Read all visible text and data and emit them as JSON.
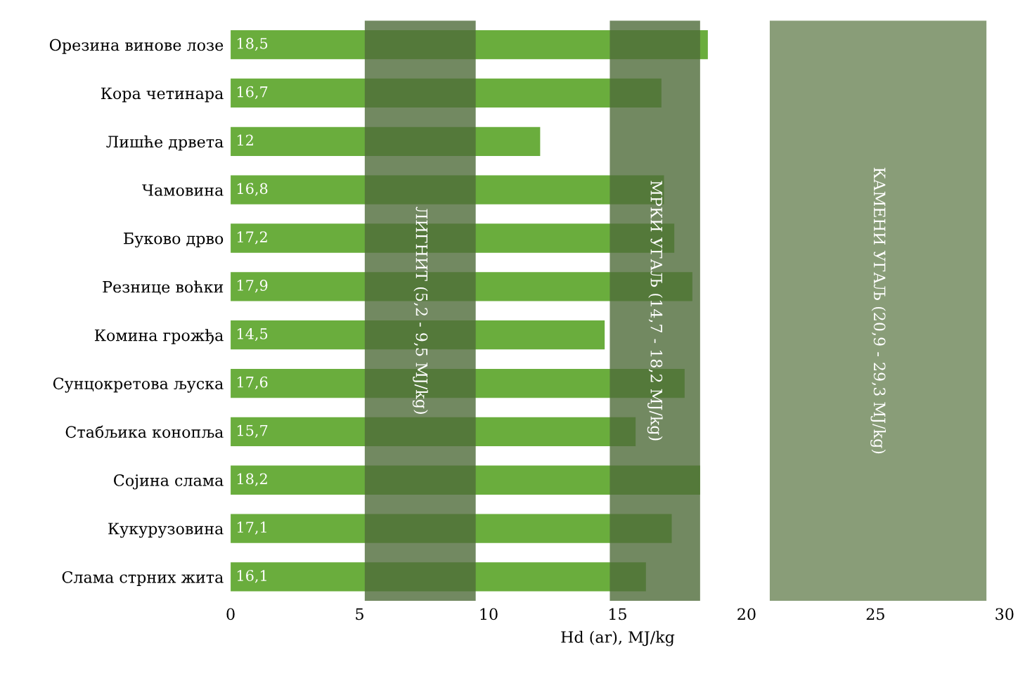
{
  "chart_data": {
    "type": "bar",
    "orientation": "horizontal",
    "xlabel": "Hd (ar), MJ/kg",
    "categories": [
      "Орезина винове лозе",
      "Кора четинара",
      "Лишће дрвета",
      "Чамовина",
      "Буково дрво",
      "Резнице воћки",
      "Комина грожђа",
      "Сунцокретова љуска",
      "Стабљика конопља",
      "Сојина слама",
      "Кукурузовина",
      "Слама стрних жита"
    ],
    "values": [
      18.5,
      16.7,
      12,
      16.8,
      17.2,
      17.9,
      14.5,
      17.6,
      15.7,
      18.2,
      17.1,
      16.1
    ],
    "value_labels": [
      "18,5",
      "16,7",
      "12",
      "16,8",
      "17,2",
      "17,9",
      "14,5",
      "17,6",
      "15,7",
      "18,2",
      "17,1",
      "16,1"
    ],
    "color": "#6aad3d",
    "xlim": [
      0,
      30
    ],
    "xticks": [
      0,
      5,
      10,
      15,
      20,
      25,
      30
    ],
    "grid": false,
    "bands": [
      {
        "axis": "x",
        "from": 5.2,
        "to": 9.5,
        "label": "ЛИГНИТ (5,2 - 9,5 MJ/kg)",
        "color": "#4f6b3a"
      },
      {
        "axis": "x",
        "from": 14.7,
        "to": 18.2,
        "label": "МРКИ УГАЉ (14,7 - 18,2 MJ/kg)",
        "color": "#4f6b3a"
      },
      {
        "axis": "x",
        "from": 20.9,
        "to": 29.3,
        "label": "КАМЕНИ УГАЉ (20,9 - 29,3 MJ/kg)",
        "color": "#6b8456"
      }
    ]
  }
}
